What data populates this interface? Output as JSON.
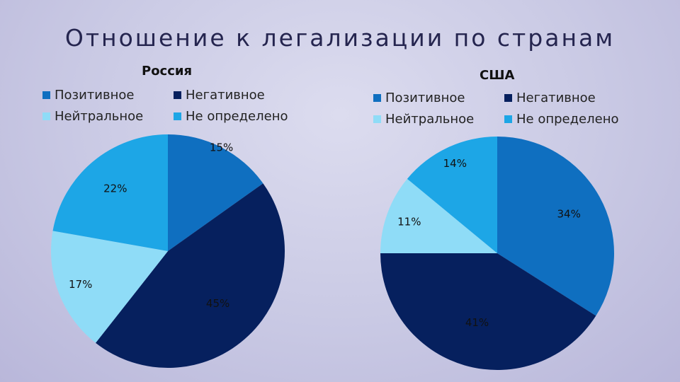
{
  "page": {
    "title": "Отношение к легализации по странам"
  },
  "colors": {
    "positive": "#0f6fc0",
    "negative": "#06205e",
    "neutral": "#8fdcf7",
    "undefined": "#1da6e6"
  },
  "chart_data": [
    {
      "type": "pie",
      "title": "Россия",
      "categories": [
        "Позитивное",
        "Негативное",
        "Нейтральное",
        "Не определено"
      ],
      "values": [
        15,
        45,
        17,
        22
      ],
      "labels": [
        "15%",
        "45%",
        "17%",
        "22%"
      ],
      "legend": [
        "Позитивное",
        "Негативное",
        "Нейтральное",
        "Не определено"
      ],
      "legend_position": "top"
    },
    {
      "type": "pie",
      "title": "США",
      "categories": [
        "Позитивное",
        "Негативное",
        "Нейтральное",
        "Не определено"
      ],
      "values": [
        34,
        41,
        11,
        14
      ],
      "labels": [
        "34%",
        "41%",
        "11%",
        "14%"
      ],
      "legend": [
        "Позитивное",
        "Негативное",
        "Нейтральное",
        "Не определено"
      ],
      "legend_position": "top"
    }
  ]
}
